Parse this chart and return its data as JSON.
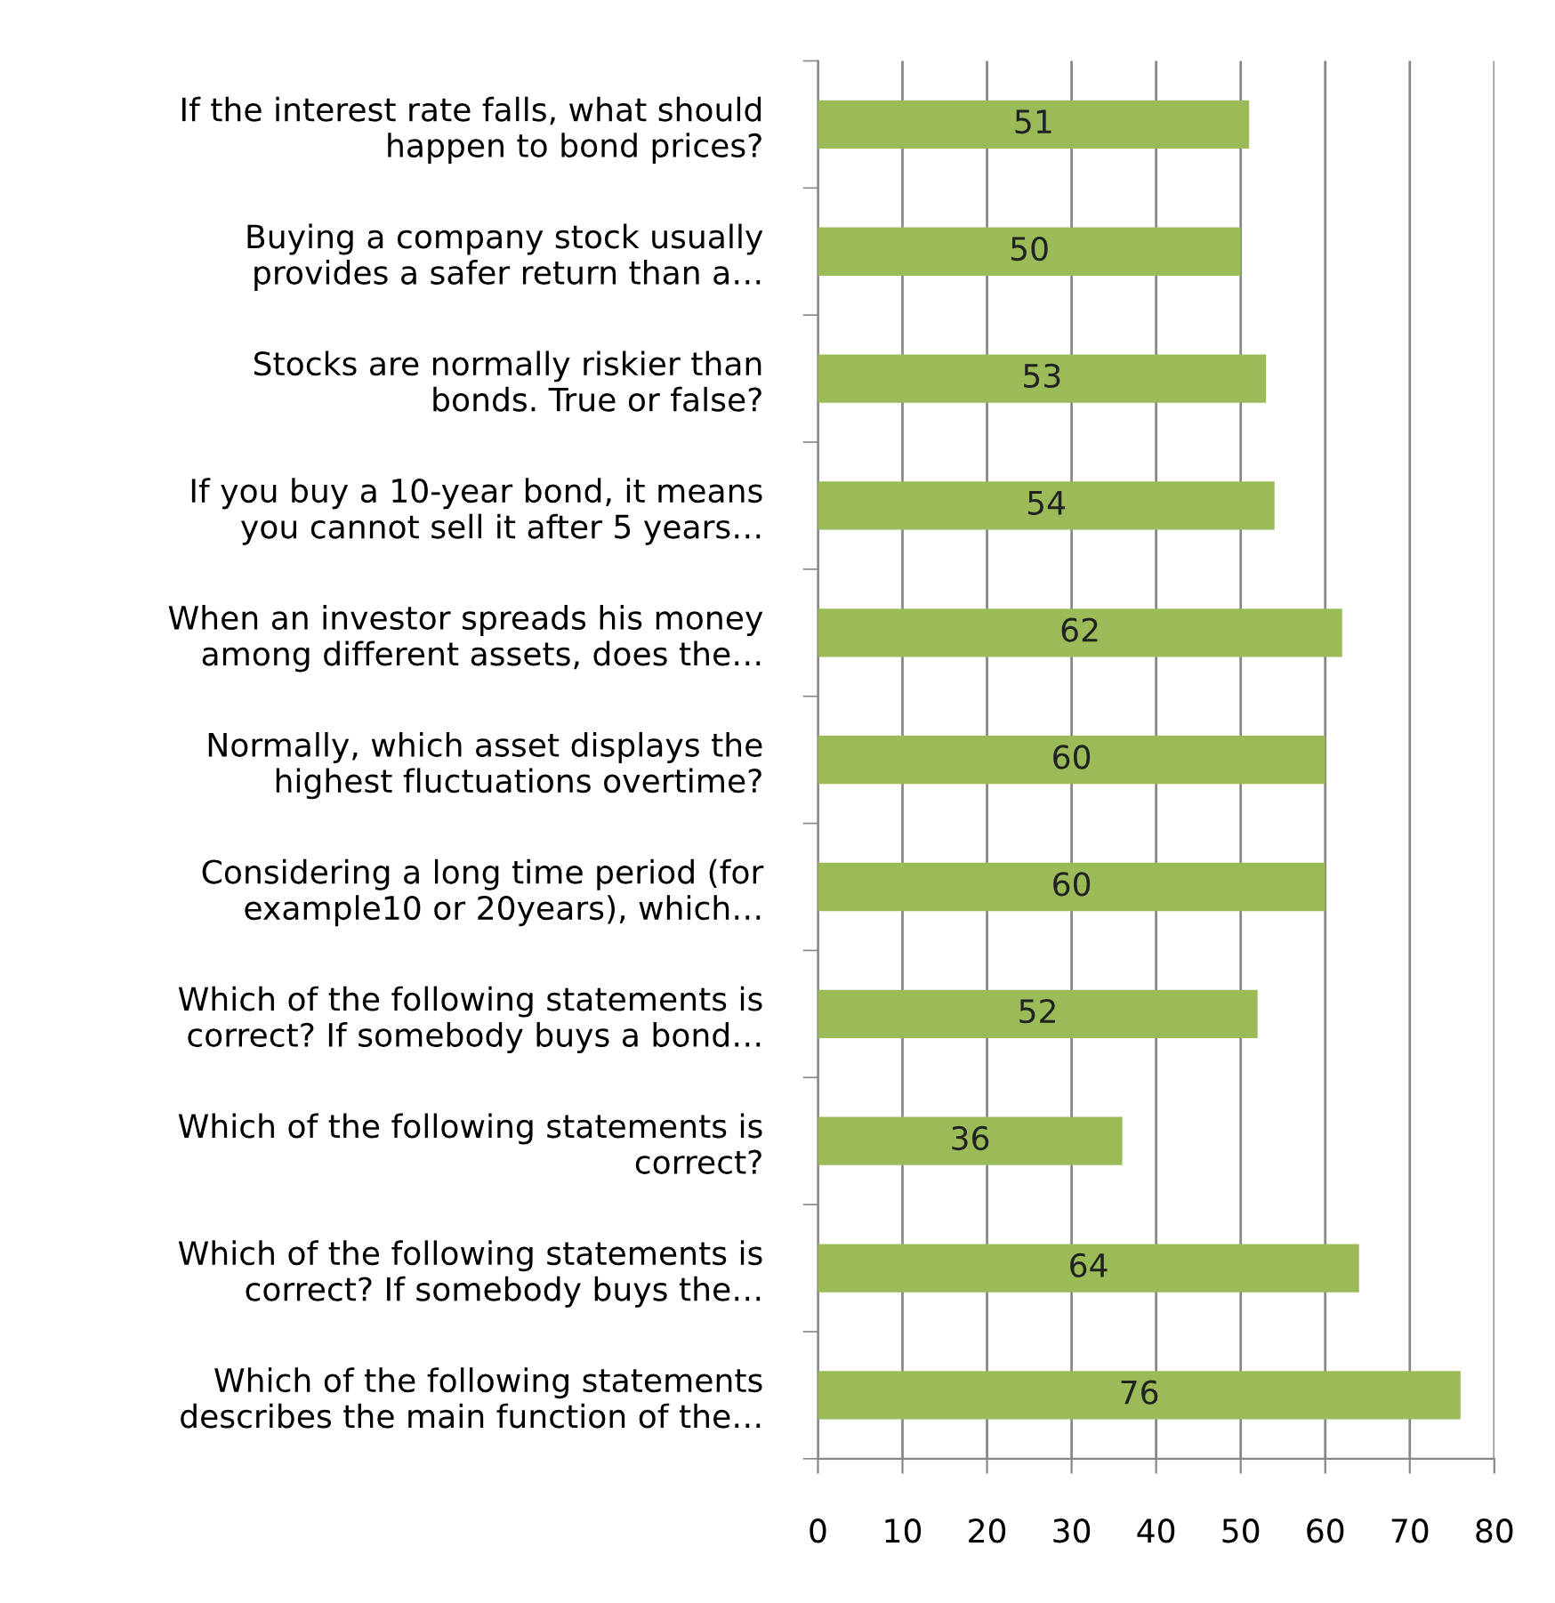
{
  "chart_data": {
    "type": "bar",
    "orientation": "horizontal",
    "categories": [
      "If the interest rate falls, what should\nhappen to bond prices?",
      "Buying a company stock usually\nprovides a safer return than a…",
      "Stocks are normally riskier than\nbonds. True or false?",
      "If you buy a 10-year bond, it means\nyou cannot sell it after 5 years…",
      "When an investor spreads his money\namong different assets, does the…",
      "Normally, which asset displays the\nhighest fluctuations overtime?",
      "Considering a long time period (for\nexample10 or 20years), which…",
      "Which of the following statements is\ncorrect? If somebody buys a bond…",
      "Which of the following statements is\ncorrect?",
      "Which of the following statements is\ncorrect? If somebody buys the…",
      "Which of the following statements\ndescribes the main function of the…"
    ],
    "values": [
      51,
      50,
      53,
      54,
      62,
      60,
      60,
      52,
      36,
      64,
      76
    ],
    "color": "#9bbb59",
    "data_labels": true,
    "xlim": [
      0,
      80
    ],
    "xticks": [
      0,
      10,
      20,
      30,
      40,
      50,
      60,
      70,
      80
    ],
    "grid": "x"
  }
}
